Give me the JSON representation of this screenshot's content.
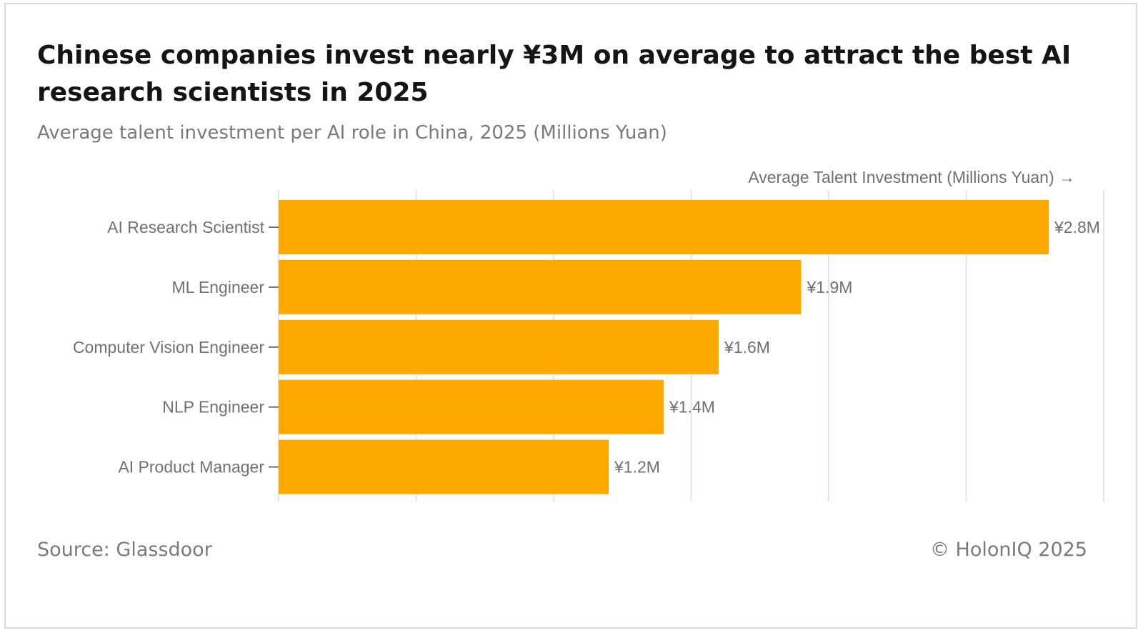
{
  "header": {
    "title": "Chinese companies invest nearly ¥3M on average to attract the best AI research scientists in 2025",
    "subtitle": "Average talent investment per AI role in China, 2025 (Millions Yuan)"
  },
  "footer": {
    "source": "Source: Glassdoor",
    "copyright": "© HolonIQ 2025"
  },
  "chart_data": {
    "type": "bar",
    "orientation": "horizontal",
    "categories": [
      "AI Research Scientist",
      "ML Engineer",
      "Computer Vision Engineer",
      "NLP Engineer",
      "AI Product Manager"
    ],
    "values": [
      2.8,
      1.9,
      1.6,
      1.4,
      1.2
    ],
    "value_labels": [
      "¥2.8M",
      "¥1.9M",
      "¥1.6M",
      "¥1.4M",
      "¥1.2M"
    ],
    "xlabel": "Average Talent Investment (Millions Yuan) →",
    "xlim": [
      0,
      3.0
    ],
    "grid": true,
    "bar_color": "#ffa800"
  }
}
